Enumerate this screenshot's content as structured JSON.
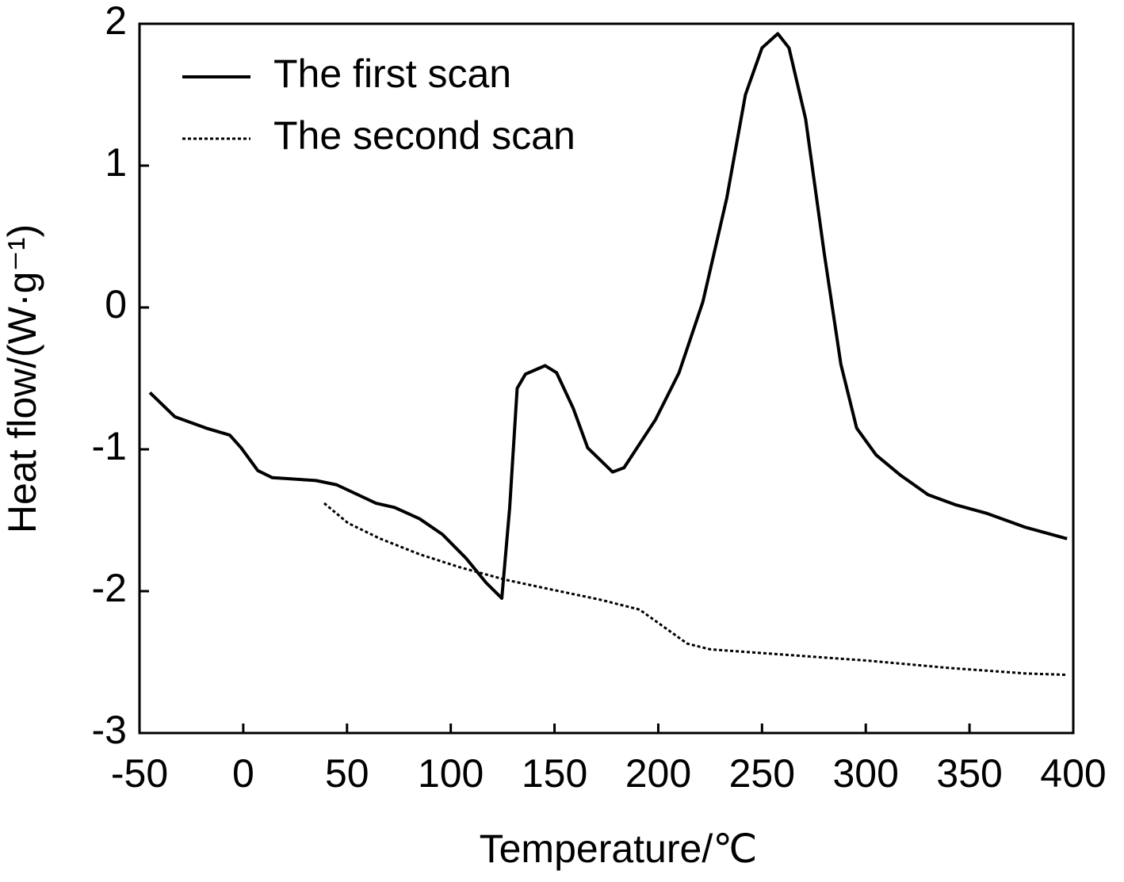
{
  "chart_data": {
    "type": "line",
    "xlabel": "Temperature/℃",
    "ylabel": "Heat flow/(W·g⁻¹)",
    "xlim": [
      -50,
      400
    ],
    "ylim": [
      -3,
      2
    ],
    "xticks": [
      -50,
      0,
      50,
      100,
      150,
      200,
      250,
      300,
      350,
      400
    ],
    "yticks": [
      -3,
      -2,
      -1,
      0,
      1,
      2
    ],
    "legend": "upper left",
    "series": [
      {
        "name": "The first scan",
        "color": "#000000",
        "style": "solid",
        "x": [
          -45,
          -33,
          -18,
          -6.5,
          -1,
          7,
          14,
          35,
          45,
          64,
          73,
          85,
          96,
          107.5,
          117,
          124.6,
          128.4,
          132,
          136,
          145.5,
          151,
          159,
          166,
          178,
          183.5,
          198.7,
          210,
          221.5,
          233,
          242,
          250,
          257.6,
          263,
          271,
          280,
          288,
          295.6,
          305,
          316.5,
          330,
          343,
          358,
          377,
          397
        ],
        "values": [
          -0.6,
          -0.77,
          -0.85,
          -0.9,
          -0.99,
          -1.15,
          -1.2,
          -1.22,
          -1.25,
          -1.38,
          -1.41,
          -1.49,
          -1.6,
          -1.77,
          -1.94,
          -2.05,
          -1.41,
          -0.57,
          -0.47,
          -0.41,
          -0.46,
          -0.71,
          -0.99,
          -1.16,
          -1.13,
          -0.79,
          -0.46,
          0.04,
          0.77,
          1.5,
          1.83,
          1.93,
          1.83,
          1.33,
          0.38,
          -0.4,
          -0.85,
          -1.04,
          -1.18,
          -1.32,
          -1.39,
          -1.45,
          -1.55,
          -1.63
        ]
      },
      {
        "name": "The second scan",
        "color": "#000000",
        "style": "dotted",
        "x": [
          39,
          50.5,
          66,
          85,
          104,
          126.5,
          149,
          172,
          191,
          202.5,
          214,
          225,
          263,
          301,
          339,
          377,
          397
        ],
        "values": [
          -1.38,
          -1.52,
          -1.63,
          -1.74,
          -1.83,
          -1.92,
          -1.99,
          -2.06,
          -2.13,
          -2.25,
          -2.37,
          -2.41,
          -2.45,
          -2.49,
          -2.54,
          -2.58,
          -2.59
        ]
      }
    ]
  }
}
